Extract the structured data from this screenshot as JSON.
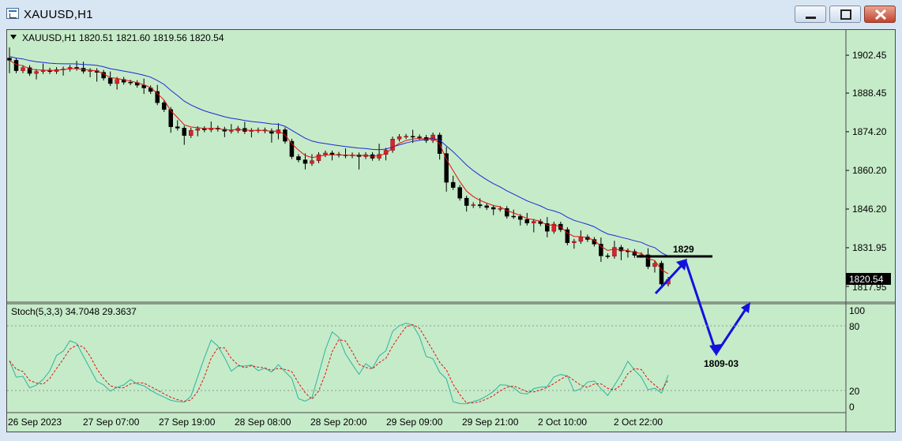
{
  "window": {
    "title": "XAUUSD,H1",
    "buttons": {
      "minimize": "minimize",
      "maximize": "maximize",
      "close": "close"
    }
  },
  "main_chart": {
    "info_line": "XAUUSD,H1  1820.51 1821.60 1819.56 1820.54",
    "price_ticks": [
      "1902.45",
      "1888.45",
      "1874.20",
      "1860.20",
      "1846.20",
      "1831.95",
      "1817.95"
    ],
    "current_price_label": "1820.54",
    "annotations": {
      "resistance_label": "1829",
      "target_label": "1809-03"
    }
  },
  "indicator": {
    "info_line": "Stoch(5,3,3) 34.7048 29.3637",
    "ticks": [
      "100",
      "80",
      "20",
      "0"
    ]
  },
  "time_axis": [
    "26 Sep 2023",
    "27 Sep 07:00",
    "27 Sep 19:00",
    "28 Sep 08:00",
    "28 Sep 20:00",
    "29 Sep 09:00",
    "29 Sep 21:00",
    "2 Oct 10:00",
    "2 Oct 22:00"
  ],
  "colors": {
    "background": "#c6ebc9",
    "bull_candle": "#e0202c",
    "bear_candle": "#000000",
    "fast_ma": "#e01010",
    "slow_ma": "#1a2ad6",
    "stoch_main": "#2bb5a0",
    "stoch_signal": "#e01010",
    "projection": "#1212dd"
  },
  "chart_data": {
    "type": "candlestick",
    "symbol": "XAUUSD",
    "timeframe": "H1",
    "ohlc_last": {
      "open": 1820.51,
      "high": 1821.6,
      "low": 1819.56,
      "close": 1820.54
    },
    "ylim": [
      1815.0,
      1906.0
    ],
    "close_path": [
      1900.6,
      1896.8,
      1897.9,
      1895.8,
      1896.5,
      1897.0,
      1896.5,
      1897.2,
      1897.4,
      1898.0,
      1897.7,
      1896.6,
      1896.8,
      1896.2,
      1894.1,
      1892.1,
      1893.6,
      1892.6,
      1892.4,
      1891.5,
      1890.5,
      1889.2,
      1885.1,
      1882.6,
      1876.3,
      1875.8,
      1873.1,
      1875.0,
      1875.6,
      1875.2,
      1875.8,
      1875.4,
      1874.7,
      1874.9,
      1875.7,
      1874.6,
      1874.9,
      1875.1,
      1874.8,
      1873.9,
      1875.2,
      1871.0,
      1865.4,
      1864.2,
      1862.9,
      1863.9,
      1866.1,
      1866.7,
      1866.2,
      1866.0,
      1865.7,
      1866.0,
      1865.4,
      1866.1,
      1864.8,
      1866.2,
      1867.7,
      1871.8,
      1872.7,
      1872.8,
      1872.6,
      1872.4,
      1871.3,
      1873.3,
      1866.5,
      1856.0,
      1854.1,
      1850.2,
      1847.5,
      1847.8,
      1847.4,
      1846.8,
      1846.2,
      1846.4,
      1843.6,
      1843.5,
      1842.4,
      1841.1,
      1841.7,
      1840.9,
      1838.1,
      1840.7,
      1838.7,
      1833.9,
      1834.4,
      1836.0,
      1835.1,
      1833.4,
      1829.1,
      1829.0,
      1832.2,
      1830.9,
      1830.7,
      1829.3,
      1829.5,
      1825.2,
      1826.4,
      1818.8,
      1820.5
    ],
    "projection": {
      "type": "line",
      "points": [
        [
          0,
          1818.0
        ],
        [
          1,
          1829.0
        ],
        [
          2,
          1809.0
        ],
        [
          3,
          1816.0
        ]
      ],
      "resistance": 1829,
      "target": "1809-03"
    },
    "stochastic": {
      "params": "5,3,3",
      "main": 34.7048,
      "signal": 29.3637,
      "levels": [
        80,
        20
      ],
      "ylim": [
        0,
        100
      ]
    },
    "x_labels": [
      "26 Sep 2023",
      "27 Sep 07:00",
      "27 Sep 19:00",
      "28 Sep 08:00",
      "28 Sep 20:00",
      "29 Sep 09:00",
      "29 Sep 21:00",
      "2 Oct 10:00",
      "2 Oct 22:00"
    ]
  }
}
